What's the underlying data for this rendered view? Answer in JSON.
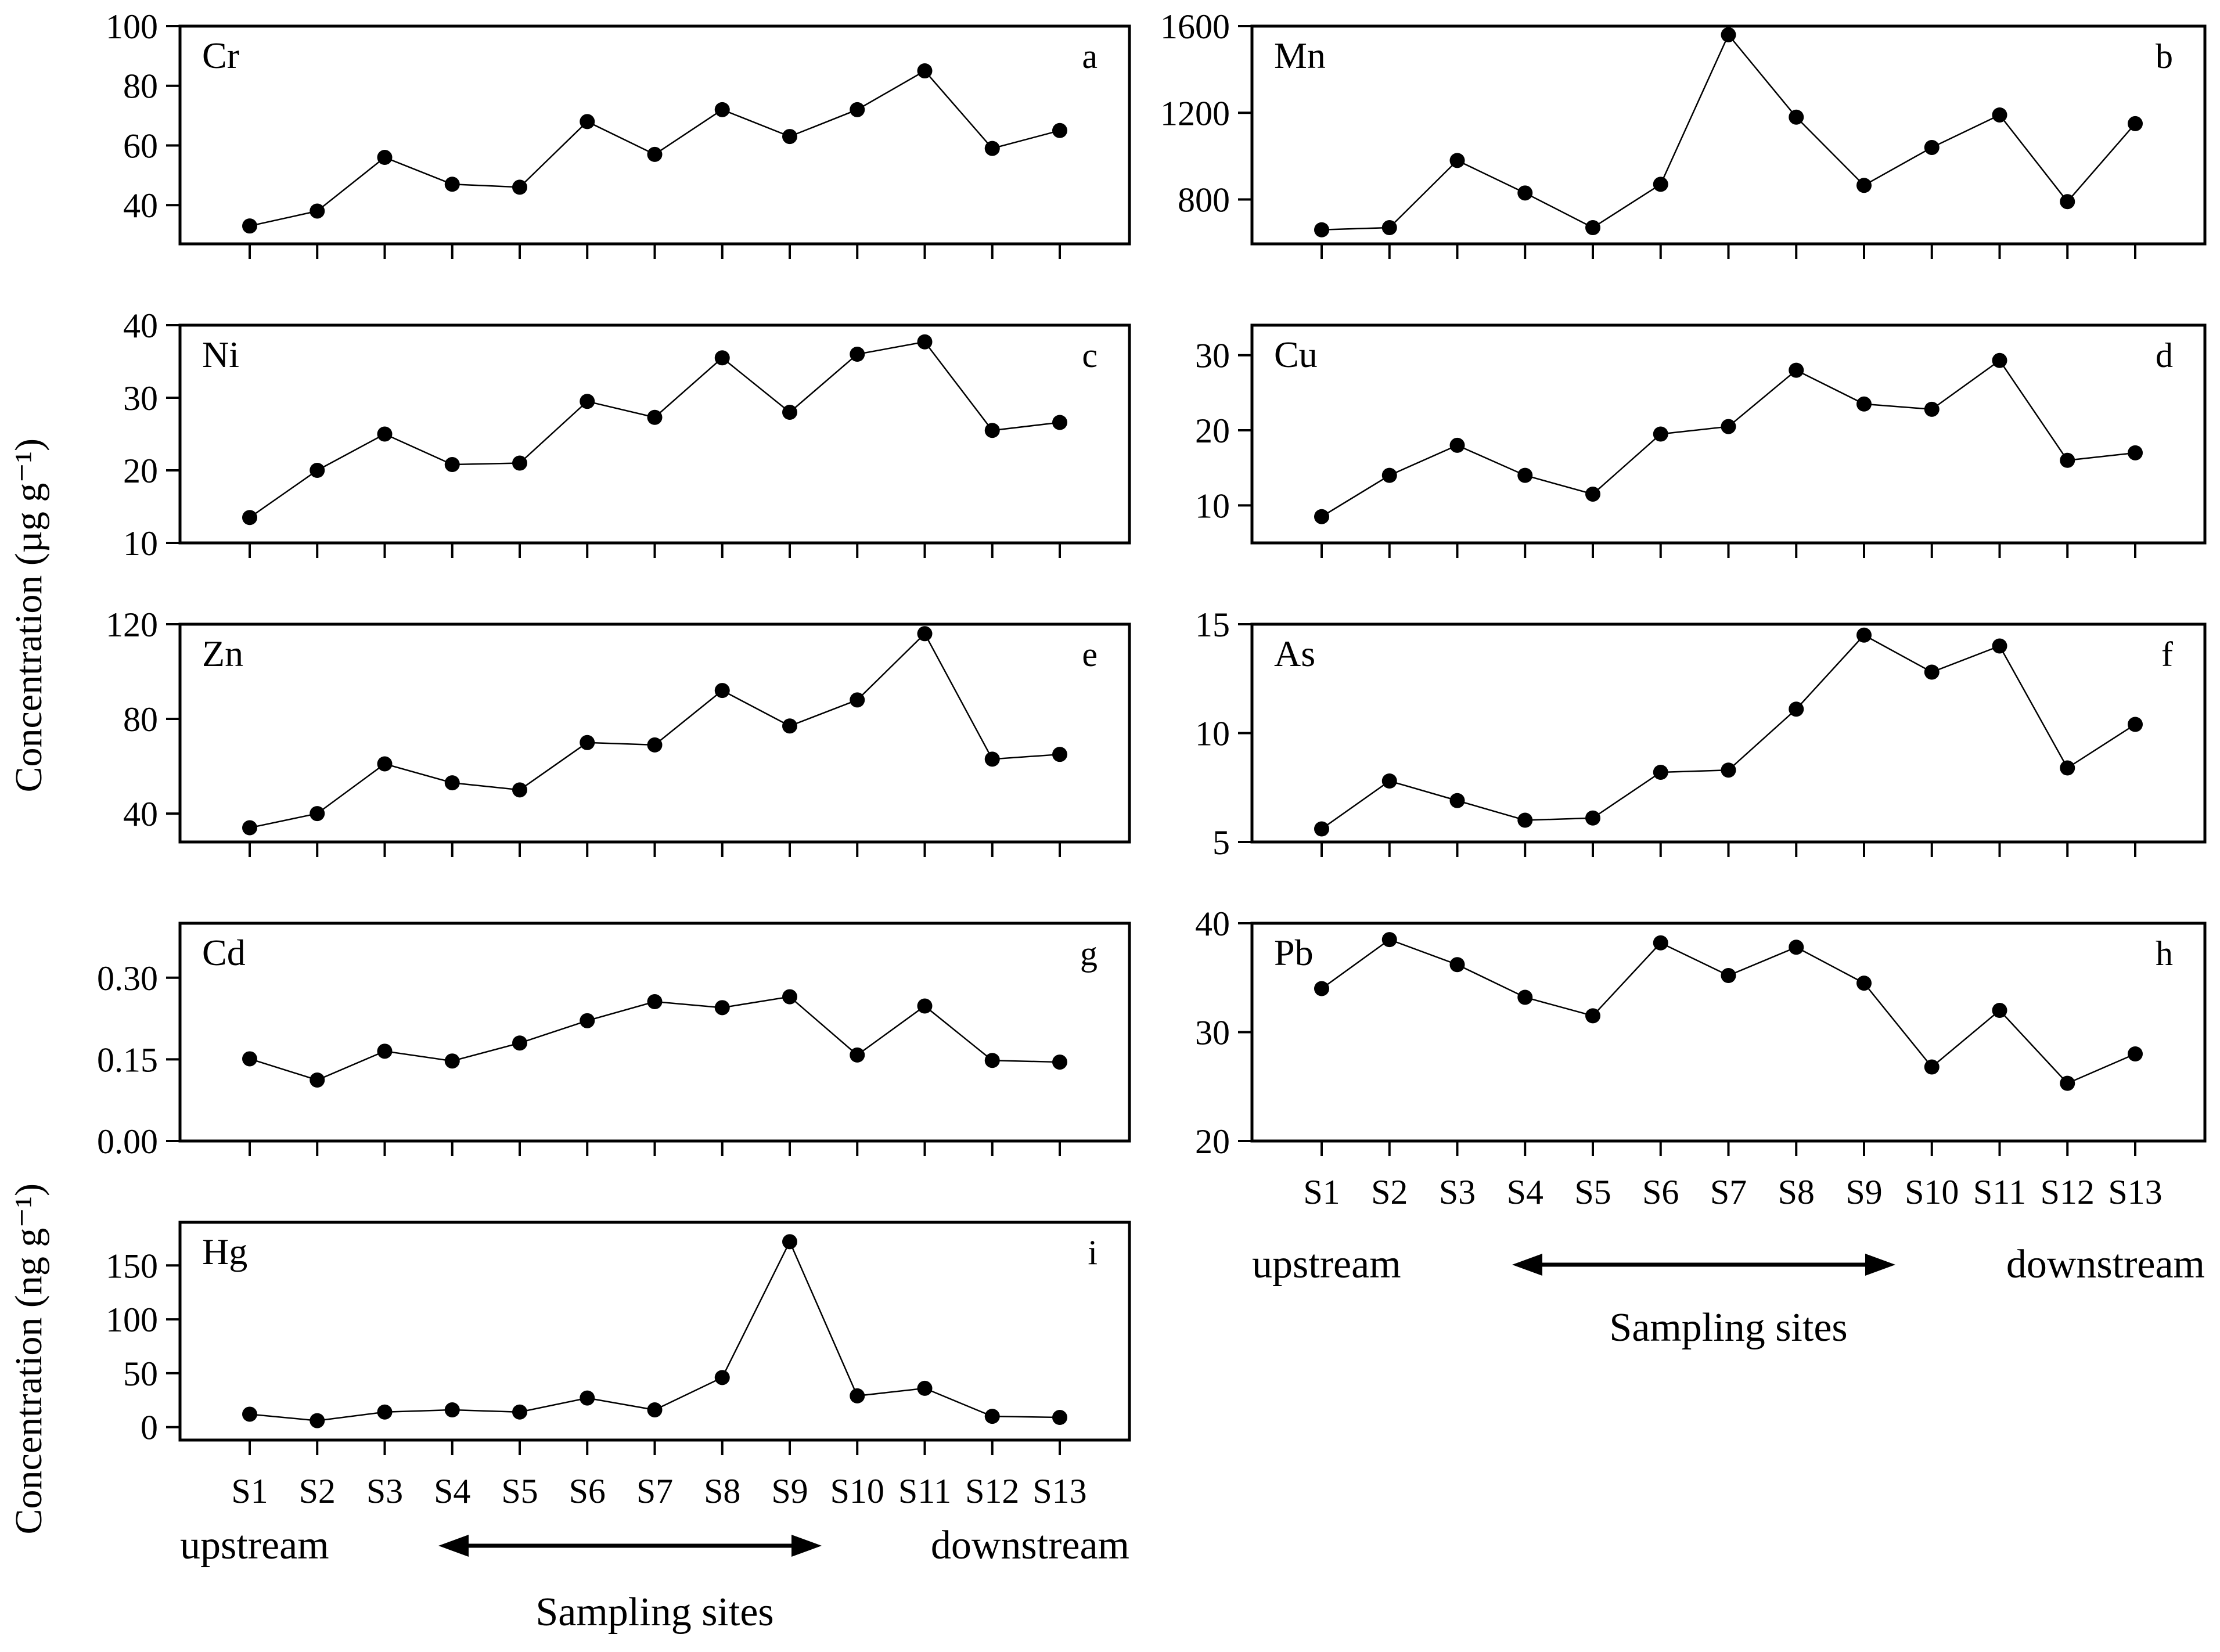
{
  "figure": {
    "y_axis_label_ug": "Concentration (µg g⁻¹)",
    "y_axis_label_ng": "Concentration (ng g⁻¹)"
  },
  "annotations": {
    "upstream": "upstream",
    "downstream": "downstream",
    "sampling_sites": "Sampling sites"
  },
  "colors": {
    "ink": "#000000",
    "background": "#ffffff"
  },
  "chart_data": {
    "type": "line",
    "categories": [
      "S1",
      "S2",
      "S3",
      "S4",
      "S5",
      "S6",
      "S7",
      "S8",
      "S9",
      "S10",
      "S11",
      "S12",
      "S13"
    ],
    "xlabel": "Sampling sites",
    "x_direction": "upstream ↔ downstream",
    "grid": "off",
    "marker": "filled-circle",
    "panels": [
      {
        "element": "Cr",
        "letter": "a",
        "column": "left",
        "row": 0,
        "unit": "µg g⁻¹",
        "ylim": [
          27,
          100
        ],
        "yticks": [
          40,
          60,
          80,
          100
        ],
        "ytick_labels": [
          "40",
          "60",
          "80",
          "100"
        ],
        "values": [
          33,
          38,
          56,
          47,
          46,
          68,
          57,
          72,
          63,
          72,
          85,
          59,
          65
        ],
        "show_x_labels": false
      },
      {
        "element": "Mn",
        "letter": "b",
        "column": "right",
        "row": 0,
        "unit": "µg g⁻¹",
        "ylim": [
          595,
          1600
        ],
        "yticks": [
          800,
          1200,
          1600
        ],
        "ytick_labels": [
          "800",
          "1200",
          "1600"
        ],
        "values": [
          660,
          670,
          980,
          830,
          670,
          870,
          1560,
          1180,
          865,
          1040,
          1190,
          790,
          1150
        ],
        "show_x_labels": false
      },
      {
        "element": "Ni",
        "letter": "c",
        "column": "left",
        "row": 1,
        "unit": "µg g⁻¹",
        "ylim": [
          10,
          40
        ],
        "yticks": [
          10,
          20,
          30,
          40
        ],
        "ytick_labels": [
          "10",
          "20",
          "30",
          "40"
        ],
        "values": [
          13.5,
          20,
          25,
          20.8,
          21,
          29.5,
          27.3,
          35.5,
          28,
          36,
          37.7,
          25.5,
          26.6
        ],
        "show_x_labels": false
      },
      {
        "element": "Cu",
        "letter": "d",
        "column": "right",
        "row": 1,
        "unit": "µg g⁻¹",
        "ylim": [
          5,
          34
        ],
        "yticks": [
          10,
          20,
          30
        ],
        "ytick_labels": [
          "10",
          "20",
          "30"
        ],
        "values": [
          8.5,
          14,
          18,
          14,
          11.5,
          19.5,
          20.5,
          28,
          23.5,
          22.8,
          29.3,
          16,
          17
        ],
        "show_x_labels": false
      },
      {
        "element": "Zn",
        "letter": "e",
        "column": "left",
        "row": 2,
        "unit": "µg g⁻¹",
        "ylim": [
          28,
          120
        ],
        "yticks": [
          40,
          80,
          120
        ],
        "ytick_labels": [
          "40",
          "80",
          "120"
        ],
        "values": [
          34,
          40,
          61,
          53,
          50,
          70,
          69,
          92,
          77,
          88,
          116,
          63,
          65
        ],
        "show_x_labels": false
      },
      {
        "element": "As",
        "letter": "f",
        "column": "right",
        "row": 2,
        "unit": "µg g⁻¹",
        "ylim": [
          5,
          15
        ],
        "yticks": [
          5,
          10,
          15
        ],
        "ytick_labels": [
          "5",
          "10",
          "15"
        ],
        "values": [
          5.6,
          7.8,
          6.9,
          6.0,
          6.1,
          8.2,
          8.3,
          11.1,
          14.5,
          12.8,
          14.0,
          8.4,
          10.4
        ],
        "show_x_labels": false
      },
      {
        "element": "Cd",
        "letter": "g",
        "column": "left",
        "row": 3,
        "unit": "µg g⁻¹",
        "ylim": [
          0,
          0.4
        ],
        "yticks": [
          0,
          0.15,
          0.3
        ],
        "ytick_labels": [
          "0.00",
          "0.15",
          "0.30"
        ],
        "values": [
          0.151,
          0.112,
          0.165,
          0.147,
          0.18,
          0.221,
          0.256,
          0.245,
          0.265,
          0.158,
          0.248,
          0.148,
          0.145
        ],
        "show_x_labels": false
      },
      {
        "element": "Pb",
        "letter": "h",
        "column": "right",
        "row": 3,
        "unit": "µg g⁻¹",
        "ylim": [
          20,
          40
        ],
        "yticks": [
          20,
          30,
          40
        ],
        "ytick_labels": [
          "20",
          "30",
          "40"
        ],
        "values": [
          34,
          38.5,
          36.2,
          33.2,
          31.5,
          38.2,
          35.2,
          37.8,
          34.5,
          26.8,
          32,
          25.3,
          28
        ],
        "show_x_labels": true
      },
      {
        "element": "Hg",
        "letter": "i",
        "column": "left",
        "row": 4,
        "unit": "ng g⁻¹",
        "ylim": [
          -12,
          190
        ],
        "yticks": [
          0,
          50,
          100,
          150
        ],
        "ytick_labels": [
          "0",
          "50",
          "100",
          "150"
        ],
        "values": [
          12,
          6,
          14,
          16,
          14,
          27,
          16,
          46,
          172,
          29,
          36,
          10,
          9
        ],
        "show_x_labels": true
      }
    ]
  }
}
